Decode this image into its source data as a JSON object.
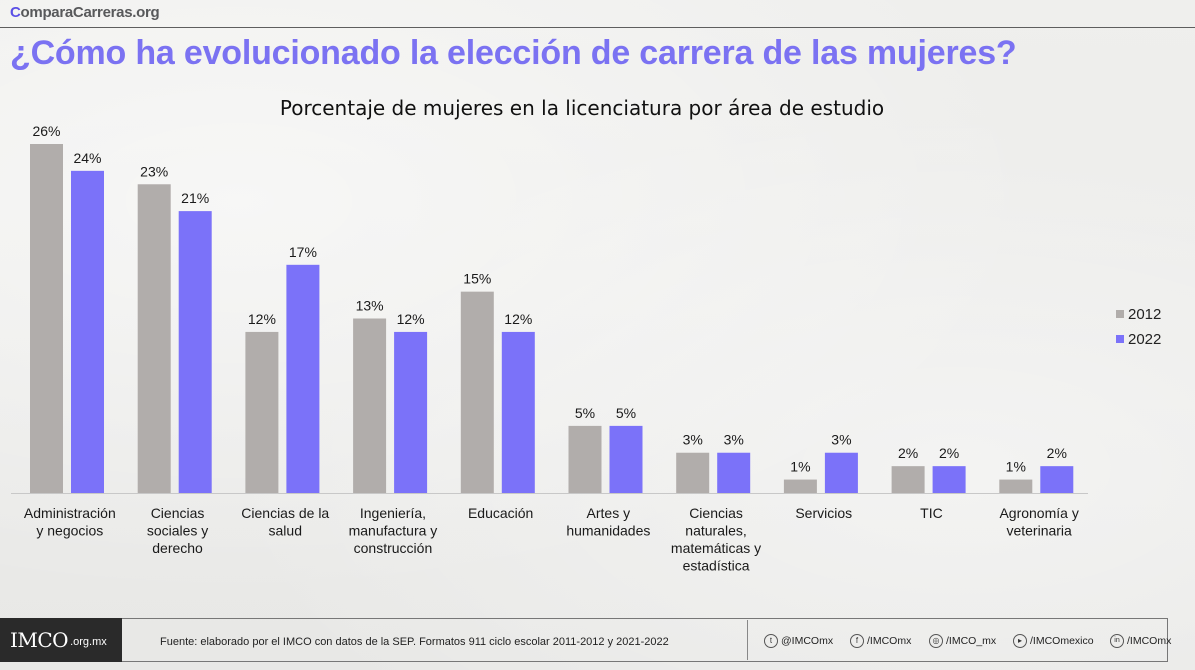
{
  "brand": {
    "first_letter": "C",
    "rest": "omparaCarreras.org"
  },
  "page_title": "¿Cómo ha evolucionado la elección de carrera de las mujeres?",
  "colors": {
    "series_2012": "#b1adab",
    "series_2022": "#7b72f9",
    "title": "#7b72f2"
  },
  "chart_data": {
    "type": "bar",
    "title": "Porcentaje de mujeres en la licenciatura por área de estudio",
    "categories": [
      [
        "Administración",
        "y negocios"
      ],
      [
        "Ciencias",
        "sociales y",
        "derecho"
      ],
      [
        "Ciencias de la",
        "salud"
      ],
      [
        "Ingeniería,",
        "manufactura y",
        "construcción"
      ],
      [
        "Educación"
      ],
      [
        "Artes y",
        "humanidades"
      ],
      [
        "Ciencias",
        "naturales,",
        "matemáticas y",
        "estadística"
      ],
      [
        "Servicios"
      ],
      [
        "TIC"
      ],
      [
        "Agronomía y",
        "veterinaria"
      ]
    ],
    "series": [
      {
        "name": "2012",
        "values": [
          26,
          23,
          12,
          13,
          15,
          5,
          3,
          1,
          2,
          1
        ],
        "value_labels": [
          "26%",
          "23%",
          "12%",
          "13%",
          "15%",
          "5%",
          "3%",
          "1%",
          "2%",
          "1%"
        ]
      },
      {
        "name": "2022",
        "values": [
          24,
          21,
          17,
          12,
          12,
          5,
          3,
          3,
          2,
          2
        ],
        "value_labels": [
          "24%",
          "21%",
          "17%",
          "12%",
          "12%",
          "5%",
          "3%",
          "3%",
          "2%",
          "2%"
        ]
      }
    ],
    "ylim": [
      0,
      26
    ],
    "legend_position": "right",
    "grid": false
  },
  "footer": {
    "logo_mark": "IMCO",
    "logo_domain": ".org.mx",
    "source": "Fuente: elaborado por el IMCO con datos de la SEP. Formatos 911 ciclo escolar 2011-2012 y 2021-2022",
    "social": [
      {
        "icon": "twitter-icon",
        "glyph": "t",
        "handle": "@IMCOmx"
      },
      {
        "icon": "facebook-icon",
        "glyph": "f",
        "handle": "/IMCOmx"
      },
      {
        "icon": "instagram-icon",
        "glyph": "◎",
        "handle": "/IMCO_mx"
      },
      {
        "icon": "youtube-icon",
        "glyph": "▸",
        "handle": "/IMCOmexico"
      },
      {
        "icon": "linkedin-icon",
        "glyph": "in",
        "handle": "/IMCOmx"
      }
    ]
  }
}
